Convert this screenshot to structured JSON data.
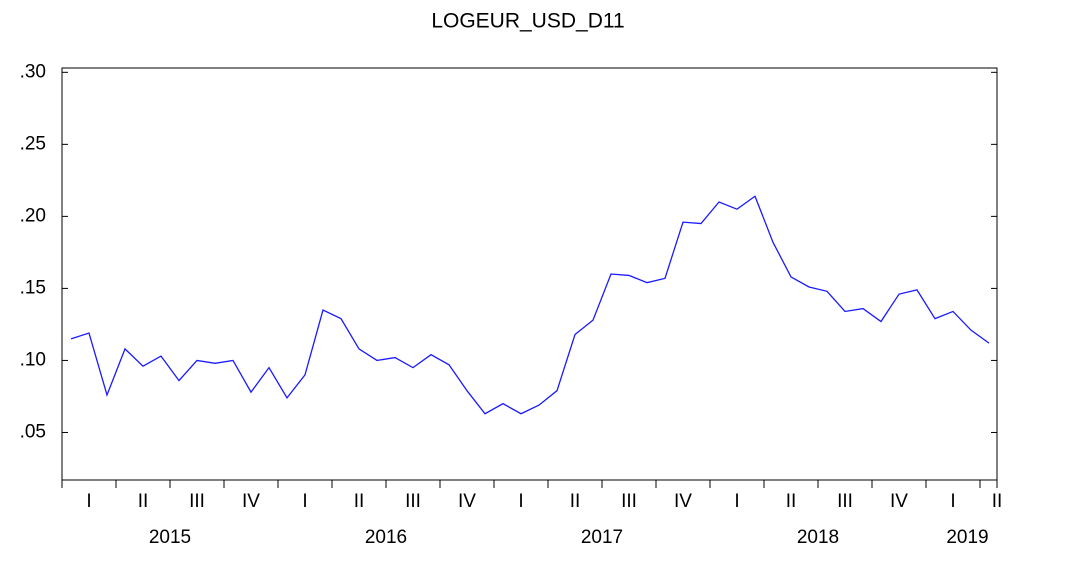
{
  "chart_data": {
    "type": "line",
    "title": "LOGEUR_USD_D11",
    "series": [
      {
        "name": "LOGEUR_USD_D11",
        "color": "#1a1aff",
        "values": [
          0.115,
          0.119,
          0.076,
          0.108,
          0.096,
          0.103,
          0.086,
          0.1,
          0.098,
          0.1,
          0.078,
          0.095,
          0.074,
          0.09,
          0.135,
          0.129,
          0.108,
          0.1,
          0.102,
          0.095,
          0.104,
          0.097,
          0.079,
          0.063,
          0.07,
          0.063,
          0.069,
          0.079,
          0.118,
          0.128,
          0.16,
          0.159,
          0.154,
          0.157,
          0.196,
          0.195,
          0.21,
          0.205,
          0.214,
          0.182,
          0.158,
          0.151,
          0.148,
          0.134,
          0.136,
          0.127,
          0.146,
          0.149,
          0.129,
          0.134,
          0.121,
          0.112
        ]
      }
    ],
    "ylim": [
      0.017,
      0.303
    ],
    "yticks": [
      {
        "value": 0.05,
        "label": ".05"
      },
      {
        "value": 0.1,
        "label": ".10"
      },
      {
        "value": 0.15,
        "label": ".15"
      },
      {
        "value": 0.2,
        "label": ".20"
      },
      {
        "value": 0.25,
        "label": ".25"
      },
      {
        "value": 0.3,
        "label": ".30"
      }
    ],
    "quarter_labels": [
      "I",
      "II",
      "III",
      "IV",
      "I",
      "II",
      "III",
      "IV",
      "I",
      "II",
      "III",
      "IV",
      "I",
      "II",
      "III",
      "IV",
      "I",
      "II"
    ],
    "year_labels": [
      "2015",
      "2016",
      "2017",
      "2018",
      "2019"
    ]
  }
}
